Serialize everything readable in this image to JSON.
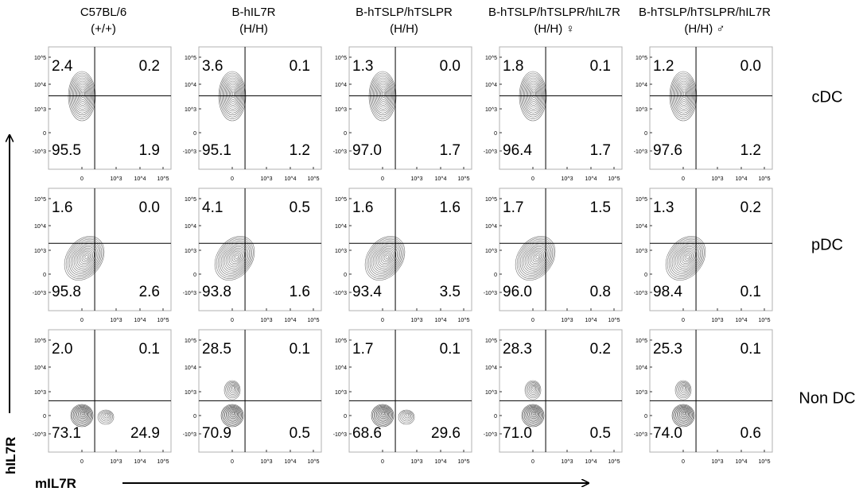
{
  "chart_data": {
    "type": "flow-cytometry-contour-grid",
    "x_axis_label": "mIL7R",
    "y_axis_label": "hIL7R",
    "x_ticks": [
      "0",
      "10^3",
      "10^4",
      "10^5"
    ],
    "y_ticks": [
      "10^5",
      "10^4",
      "10^3",
      "0",
      "-10^3"
    ],
    "columns": [
      {
        "line1": "C57BL/6",
        "line2": "(+/+)"
      },
      {
        "line1": "B-hIL7R",
        "line2": "(H/H)"
      },
      {
        "line1": "B-hTSLP/hTSLPR",
        "line2": "(H/H)"
      },
      {
        "line1": "B-hTSLP/hTSLPR/hIL7R",
        "line2": "(H/H) ♀"
      },
      {
        "line1": "B-hTSLP/hTSLPR/hIL7R",
        "line2": "(H/H) ♂"
      }
    ],
    "rows": [
      {
        "label": "cDC",
        "panels": [
          {
            "ul": "2.4",
            "ur": "0.2",
            "ll": "95.5",
            "lr": "1.9"
          },
          {
            "ul": "3.6",
            "ur": "0.1",
            "ll": "95.1",
            "lr": "1.2"
          },
          {
            "ul": "1.3",
            "ur": "0.0",
            "ll": "97.0",
            "lr": "1.7"
          },
          {
            "ul": "1.8",
            "ur": "0.1",
            "ll": "96.4",
            "lr": "1.7"
          },
          {
            "ul": "1.2",
            "ur": "0.0",
            "ll": "97.6",
            "lr": "1.2"
          }
        ]
      },
      {
        "label": "pDC",
        "panels": [
          {
            "ul": "1.6",
            "ur": "0.0",
            "ll": "95.8",
            "lr": "2.6"
          },
          {
            "ul": "4.1",
            "ur": "0.5",
            "ll": "93.8",
            "lr": "1.6"
          },
          {
            "ul": "1.6",
            "ur": "1.6",
            "ll": "93.4",
            "lr": "3.5"
          },
          {
            "ul": "1.7",
            "ur": "1.5",
            "ll": "96.0",
            "lr": "0.8"
          },
          {
            "ul": "1.3",
            "ur": "0.2",
            "ll": "98.4",
            "lr": "0.1"
          }
        ]
      },
      {
        "label": "Non DC",
        "panels": [
          {
            "ul": "2.0",
            "ur": "0.1",
            "ll": "73.1",
            "lr": "24.9"
          },
          {
            "ul": "28.5",
            "ur": "0.1",
            "ll": "70.9",
            "lr": "0.5"
          },
          {
            "ul": "1.7",
            "ur": "0.1",
            "ll": "68.6",
            "lr": "29.6"
          },
          {
            "ul": "28.3",
            "ur": "0.2",
            "ll": "71.0",
            "lr": "0.5"
          },
          {
            "ul": "25.3",
            "ur": "0.1",
            "ll": "74.0",
            "lr": "0.6"
          }
        ]
      }
    ],
    "colors": {
      "contour": "#707070",
      "frame": "#b0b0b0",
      "gate": "#000000"
    }
  }
}
